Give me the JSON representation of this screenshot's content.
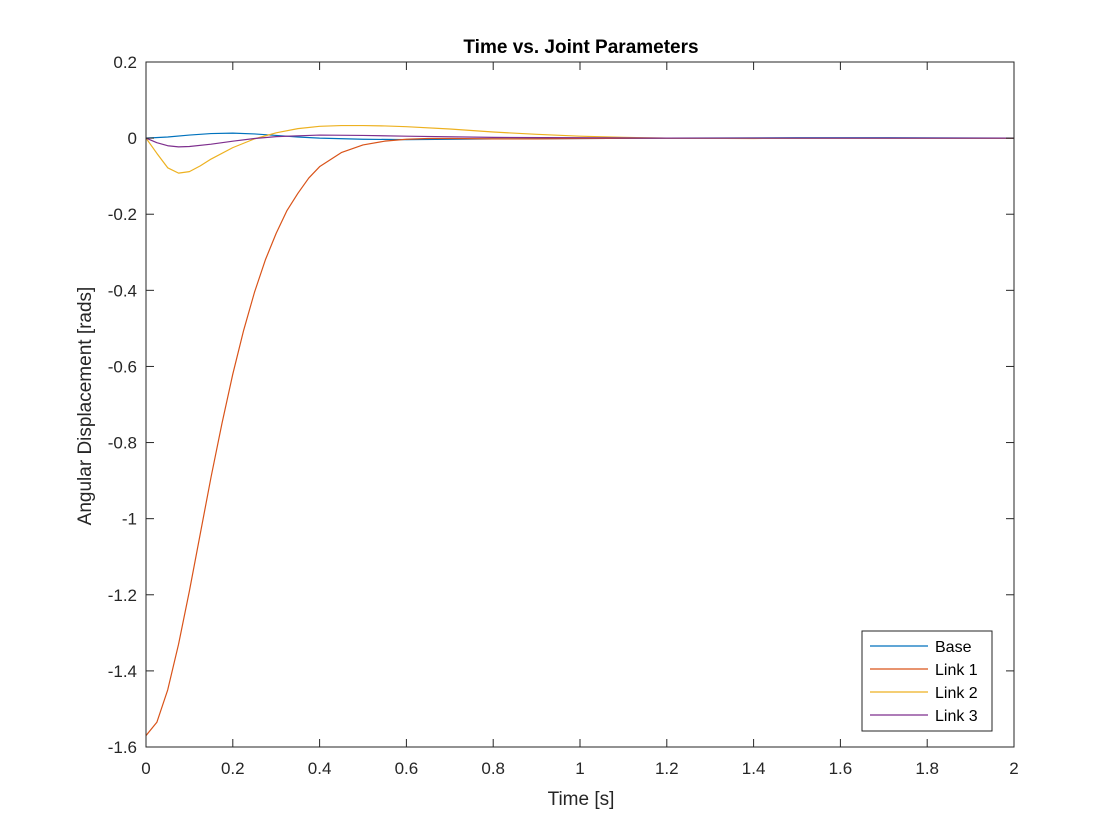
{
  "chart_data": {
    "type": "line",
    "title": "Time vs. Joint Parameters",
    "xlabel": "Time [s]",
    "ylabel": "Angular Displacement [rads]",
    "xlim": [
      0,
      2
    ],
    "ylim": [
      -1.6,
      0.2
    ],
    "xticks": [
      0,
      0.2,
      0.4,
      0.6,
      0.8,
      1,
      1.2,
      1.4,
      1.6,
      1.8,
      2
    ],
    "xtick_labels": [
      "0",
      "0.2",
      "0.4",
      "0.6",
      "0.8",
      "1",
      "1.2",
      "1.4",
      "1.6",
      "1.8",
      "2"
    ],
    "yticks": [
      0.2,
      0,
      -0.2,
      -0.4,
      -0.6,
      -0.8,
      -1,
      -1.2,
      -1.4,
      -1.6
    ],
    "ytick_labels": [
      "0.2",
      "0",
      "-0.2",
      "-0.4",
      "-0.6",
      "-0.8",
      "-1",
      "-1.2",
      "-1.4",
      "-1.6"
    ],
    "grid": false,
    "legend_position": "bottom-right",
    "series": [
      {
        "name": "Base",
        "color": "#0072BD",
        "x": [
          0,
          0.05,
          0.1,
          0.15,
          0.2,
          0.25,
          0.3,
          0.35,
          0.4,
          0.5,
          0.6,
          0.7,
          0.8,
          1.0,
          1.2,
          1.5,
          1.7,
          2.0
        ],
        "y": [
          0,
          0.003,
          0.008,
          0.012,
          0.013,
          0.011,
          0.007,
          0.003,
          0.0,
          -0.003,
          -0.004,
          -0.003,
          -0.002,
          -0.001,
          0,
          0.001,
          0.001,
          0
        ]
      },
      {
        "name": "Link 1",
        "color": "#D95319",
        "x": [
          0,
          0.025,
          0.05,
          0.075,
          0.1,
          0.125,
          0.15,
          0.175,
          0.2,
          0.225,
          0.25,
          0.275,
          0.3,
          0.325,
          0.35,
          0.375,
          0.4,
          0.45,
          0.5,
          0.55,
          0.6,
          0.65,
          0.7,
          0.8,
          0.9,
          1.0,
          1.2,
          1.5,
          2.0
        ],
        "y": [
          -1.57,
          -1.535,
          -1.45,
          -1.33,
          -1.19,
          -1.04,
          -0.89,
          -0.75,
          -0.62,
          -0.505,
          -0.405,
          -0.32,
          -0.25,
          -0.19,
          -0.145,
          -0.105,
          -0.075,
          -0.038,
          -0.018,
          -0.008,
          -0.003,
          -0.001,
          -0.001,
          -0.002,
          -0.002,
          -0.001,
          0,
          0,
          0
        ]
      },
      {
        "name": "Link 2",
        "color": "#EDB120",
        "x": [
          0,
          0.025,
          0.05,
          0.075,
          0.1,
          0.125,
          0.15,
          0.2,
          0.25,
          0.3,
          0.35,
          0.4,
          0.45,
          0.5,
          0.55,
          0.6,
          0.7,
          0.8,
          0.9,
          1.0,
          1.1,
          1.2,
          1.4,
          1.6,
          2.0
        ],
        "y": [
          0,
          -0.04,
          -0.078,
          -0.092,
          -0.088,
          -0.073,
          -0.055,
          -0.025,
          -0.002,
          0.014,
          0.025,
          0.031,
          0.033,
          0.033,
          0.032,
          0.03,
          0.024,
          0.016,
          0.01,
          0.005,
          0.002,
          0.0,
          -0.001,
          0,
          0
        ]
      },
      {
        "name": "Link 3",
        "color": "#7E2F8E",
        "x": [
          0,
          0.025,
          0.05,
          0.075,
          0.1,
          0.15,
          0.2,
          0.25,
          0.3,
          0.4,
          0.5,
          0.6,
          0.8,
          1.0,
          1.2,
          1.5,
          2.0
        ],
        "y": [
          0,
          -0.012,
          -0.02,
          -0.023,
          -0.022,
          -0.016,
          -0.008,
          -0.001,
          0.004,
          0.008,
          0.007,
          0.005,
          0.002,
          0.001,
          0,
          0,
          0
        ]
      }
    ]
  }
}
